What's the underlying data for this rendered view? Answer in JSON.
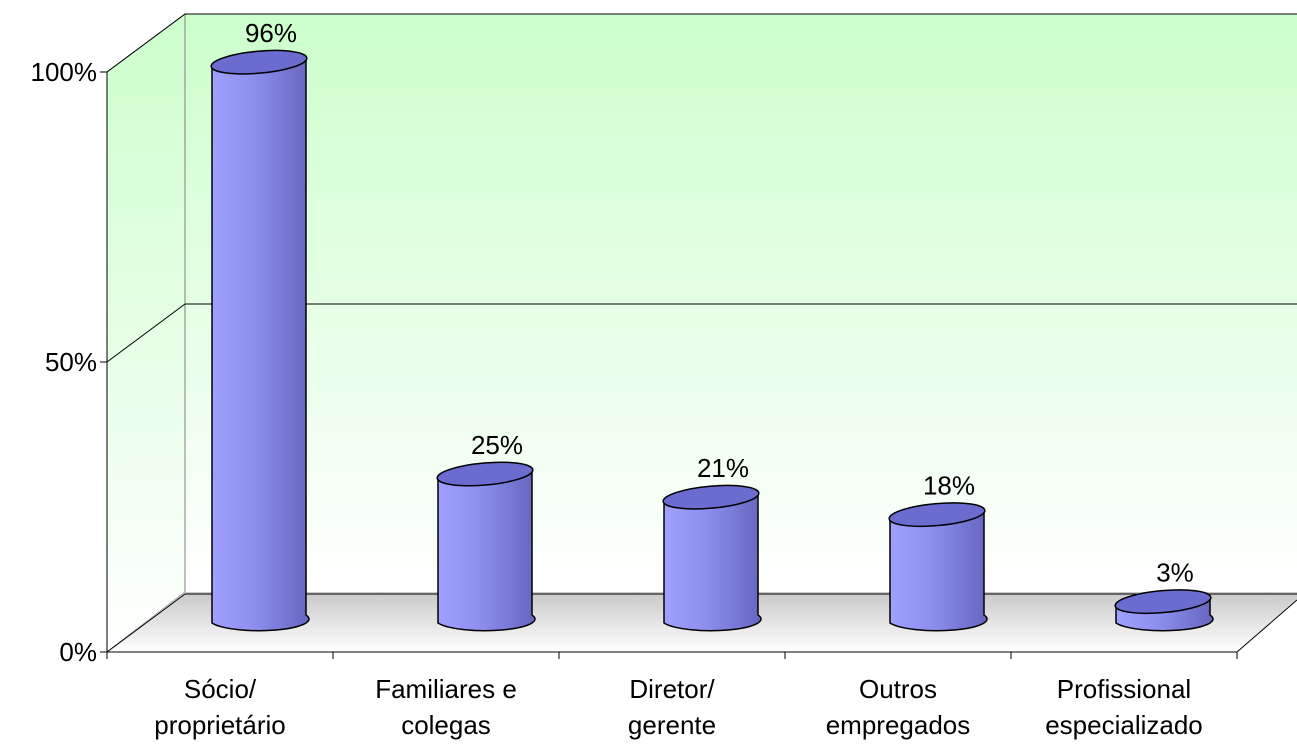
{
  "chart_data": {
    "type": "bar3d",
    "categories": [
      [
        "Sócio/",
        "proprietário"
      ],
      [
        "Familiares e",
        "colegas"
      ],
      [
        "Diretor/",
        "gerente"
      ],
      [
        "Outros",
        "empregados"
      ],
      [
        "Profissional",
        "especializado"
      ]
    ],
    "values": [
      96,
      25,
      21,
      18,
      3
    ],
    "value_labels": [
      "96%",
      "25%",
      "21%",
      "18%",
      "3%"
    ],
    "color": "#9999ff",
    "ylim": [
      0,
      100
    ],
    "yticks": [
      {
        "value": 0,
        "label": "0%"
      },
      {
        "value": 50,
        "label": "50%"
      },
      {
        "value": 100,
        "label": "100%"
      }
    ],
    "grid": true
  }
}
